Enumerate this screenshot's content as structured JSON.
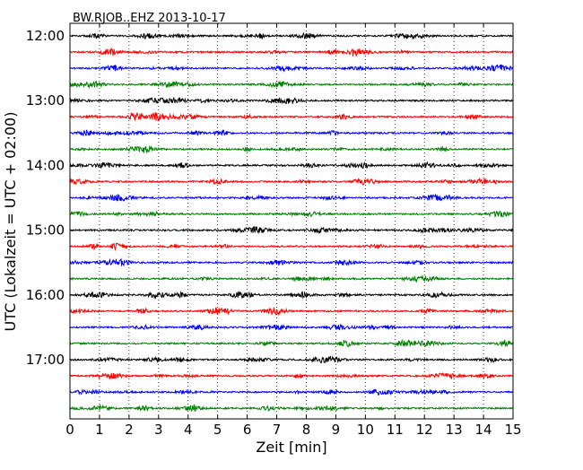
{
  "chart_data": {
    "type": "line",
    "title": "BW.RJOB..EHZ 2013-10-17",
    "xlabel": "Zeit  [min]",
    "ylabel": "UTC (Lokalzeit = UTC + 02:00)",
    "xlim": [
      0,
      15
    ],
    "x_ticks": [
      "0",
      "1",
      "2",
      "3",
      "4",
      "5",
      "6",
      "7",
      "8",
      "9",
      "10",
      "11",
      "12",
      "13",
      "14",
      "15"
    ],
    "y_tick_labels": [
      "12:00",
      "13:00",
      "14:00",
      "15:00",
      "16:00",
      "17:00"
    ],
    "trace_start_times": [
      "12:00",
      "12:15",
      "12:30",
      "12:45",
      "13:00",
      "13:15",
      "13:30",
      "13:45",
      "14:00",
      "14:15",
      "14:30",
      "14:45",
      "15:00",
      "15:15",
      "15:30",
      "15:45",
      "16:00",
      "16:15",
      "16:30",
      "16:45",
      "17:00",
      "17:15",
      "17:30",
      "17:45"
    ],
    "trace_duration_min": 15,
    "trace_colors": [
      "#000000",
      "#ff0000",
      "#0000ff",
      "#008000"
    ],
    "grid": "x-dotted",
    "legend": "none"
  }
}
